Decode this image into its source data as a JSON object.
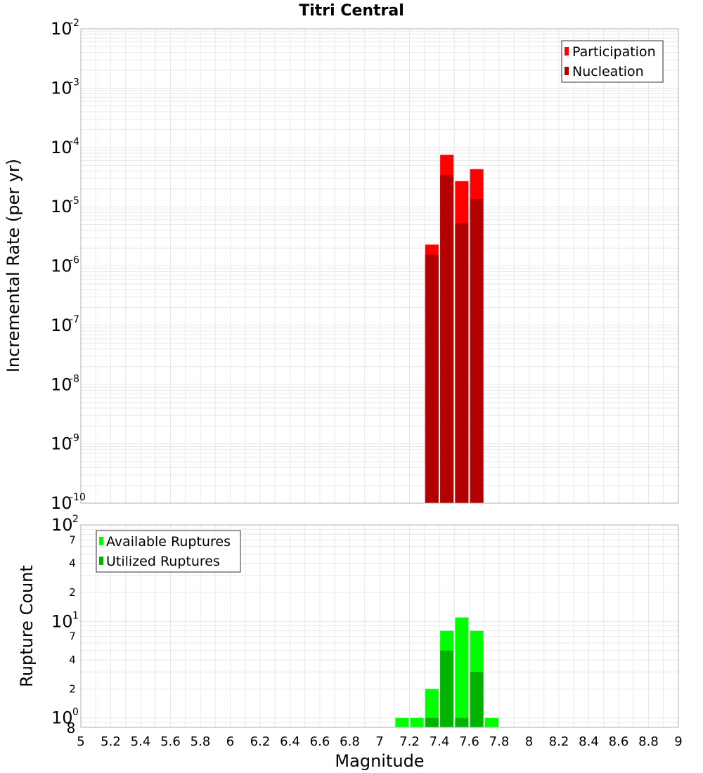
{
  "title": "Titri Central",
  "colors": {
    "participation": "#ff0000",
    "nucleation": "#b30000",
    "available": "#00ff00",
    "utilized": "#00b300",
    "grid": "#e8e8e8",
    "frame": "#b0b0b0"
  },
  "chart_data": [
    {
      "type": "bar",
      "ylabel": "Incremental Rate (per yr)",
      "yscale": "log",
      "ylim": [
        1e-10,
        0.01
      ],
      "xlim": [
        5,
        9
      ],
      "y_tick_exponents": [
        -2,
        -3,
        -4,
        -5,
        -6,
        -7,
        -8,
        -9,
        -10
      ],
      "legend": {
        "position": "top-right",
        "entries": [
          "Participation",
          "Nucleation"
        ]
      },
      "grid": true,
      "x": [
        7.35,
        7.45,
        7.55,
        7.65
      ],
      "series": [
        {
          "name": "Participation",
          "values": [
            2.3e-06,
            7.5e-05,
            2.7e-05,
            4.3e-05
          ]
        },
        {
          "name": "Nucleation",
          "values": [
            1.55e-06,
            3.4e-05,
            5.2e-06,
            1.35e-05
          ]
        }
      ]
    },
    {
      "type": "bar",
      "ylabel": "Rupture Count",
      "xlabel": "Magnitude",
      "yscale": "log",
      "ylim": [
        0.8,
        100
      ],
      "xlim": [
        5,
        9
      ],
      "x_ticks": [
        "5",
        "5.2",
        "5.4",
        "5.6",
        "5.8",
        "6",
        "6.2",
        "6.4",
        "6.6",
        "6.8",
        "7",
        "7.2",
        "7.4",
        "7.6",
        "7.8",
        "8",
        "8.2",
        "8.4",
        "8.6",
        "8.8",
        "9"
      ],
      "y_major_exponents": [
        2,
        1,
        0
      ],
      "y_minor_labels": [
        "7",
        "4",
        "2",
        "7",
        "4",
        "2"
      ],
      "y_bottom_label": "8",
      "legend": {
        "position": "top-left",
        "entries": [
          "Available Ruptures",
          "Utilized Ruptures"
        ]
      },
      "grid": true,
      "x": [
        7.15,
        7.25,
        7.35,
        7.45,
        7.55,
        7.65,
        7.75
      ],
      "series": [
        {
          "name": "Available Ruptures",
          "values": [
            1,
            1,
            2,
            8,
            11,
            8,
            1
          ]
        },
        {
          "name": "Utilized Ruptures",
          "values": [
            0,
            0,
            1,
            5,
            1,
            3,
            0
          ]
        }
      ]
    }
  ]
}
